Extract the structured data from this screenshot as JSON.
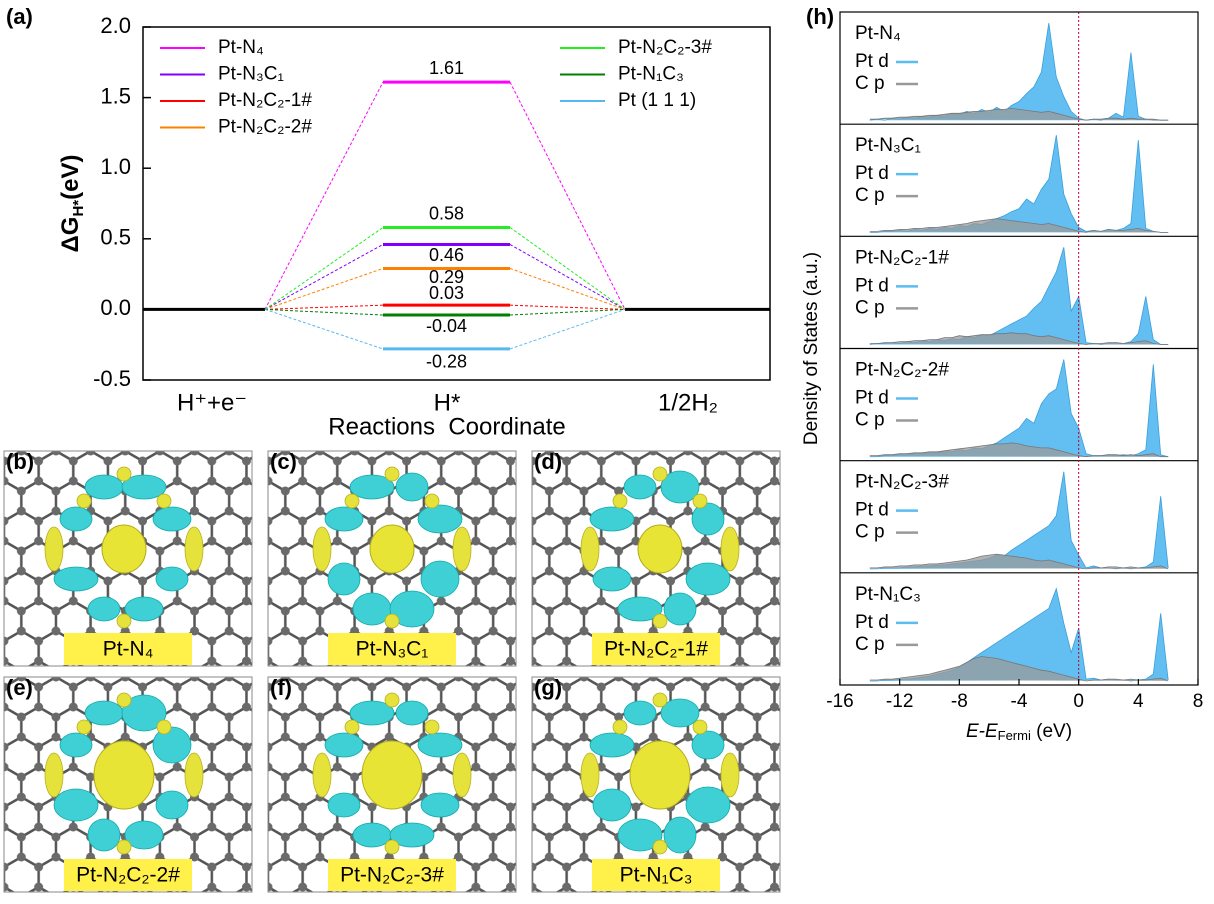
{
  "chart_data": [
    {
      "type": "profile",
      "tag": "(a)",
      "categories": [
        "H⁺+e⁻",
        "H*",
        "1/2H₂"
      ],
      "x_label": "Reactions  Coordinate",
      "y_label": [
        "ΔG",
        "H*",
        "(eV)"
      ],
      "ylim": [
        -0.5,
        2.0
      ],
      "yticks": [
        {
          "value": -0.5,
          "label": "-0.5"
        },
        {
          "value": 0,
          "label": "0.0"
        },
        {
          "value": 0.5,
          "label": "0.5"
        },
        {
          "value": 1,
          "label": "1.0"
        },
        {
          "value": 1.5,
          "label": "1.5"
        },
        {
          "value": 2,
          "label": "2.0"
        }
      ],
      "series": [
        {
          "name": "Pt-N₄",
          "color": "#ff00ff",
          "values": [
            0,
            1.61,
            0
          ]
        },
        {
          "name": "Pt-N₃C₁",
          "color": "#8000ff",
          "values": [
            0,
            0.46,
            0
          ]
        },
        {
          "name": "Pt-N₂C₂-1#",
          "color": "#ff0000",
          "values": [
            0,
            0.03,
            0
          ]
        },
        {
          "name": "Pt-N₂C₂-2#",
          "color": "#ff8000",
          "values": [
            0,
            0.29,
            0
          ]
        },
        {
          "name": "Pt-N₂C₂-3#",
          "color": "#22ee22",
          "values": [
            0,
            0.58,
            0
          ]
        },
        {
          "name": "Pt-N₁C₃",
          "color": "#007f00",
          "values": [
            0,
            -0.04,
            0
          ]
        },
        {
          "name": "Pt (1 1 1)",
          "color": "#55b8f0",
          "values": [
            0,
            -0.28,
            0
          ]
        }
      ]
    },
    {
      "type": "area",
      "tag": "(h)",
      "y_label": "Density of States (a.u.)",
      "x_label": [
        "E-E",
        "Fermi",
        " (eV)"
      ],
      "xlim": [
        -16,
        8
      ],
      "xticks": [
        -16,
        -12,
        -8,
        -4,
        0,
        4,
        8
      ],
      "ylim": [
        0,
        1
      ],
      "x": [
        -14,
        -13.5,
        -13,
        -12.5,
        -12,
        -11.5,
        -11,
        -10.5,
        -10,
        -9.5,
        -9,
        -8.5,
        -8,
        -7.5,
        -7,
        -6.5,
        -6,
        -5.5,
        -5,
        -4.5,
        -4,
        -3.5,
        -3,
        -2.5,
        -2,
        -1.5,
        -1,
        -0.5,
        0,
        0.5,
        1,
        1.5,
        2,
        2.5,
        3,
        3.5,
        4,
        4.5,
        5,
        5.5,
        6
      ],
      "panels": [
        {
          "title": "Pt-N₄",
          "series": [
            {
              "name": "Pt d",
              "color": "#5bbcf0",
              "values": [
                0.01,
                0.02,
                0.01,
                0.03,
                0.02,
                0.04,
                0.03,
                0.05,
                0.04,
                0.06,
                0.05,
                0.08,
                0.07,
                0.1,
                0.08,
                0.12,
                0.09,
                0.14,
                0.1,
                0.16,
                0.2,
                0.28,
                0.35,
                0.5,
                1.0,
                0.45,
                0.25,
                0.1,
                0.03,
                0.01,
                0.02,
                0.01,
                0.03,
                0.08,
                0.04,
                0.7,
                0.05,
                0.02,
                0.01,
                0.01,
                0.01
              ]
            },
            {
              "name": "C p",
              "color": "#999999",
              "values": [
                0.02,
                0.02,
                0.03,
                0.03,
                0.04,
                0.04,
                0.05,
                0.05,
                0.06,
                0.06,
                0.07,
                0.08,
                0.08,
                0.09,
                0.1,
                0.1,
                0.11,
                0.12,
                0.12,
                0.13,
                0.12,
                0.11,
                0.1,
                0.09,
                0.1,
                0.08,
                0.06,
                0.04,
                0.02,
                0.01,
                0.02,
                0.02,
                0.03,
                0.03,
                0.02,
                0.03,
                0.02,
                0.02,
                0.02,
                0.01,
                0.01
              ]
            }
          ]
        },
        {
          "title": "Pt-N₃C₁",
          "series": [
            {
              "name": "Pt d",
              "color": "#5bbcf0",
              "values": [
                0.01,
                0.01,
                0.02,
                0.02,
                0.03,
                0.02,
                0.04,
                0.03,
                0.05,
                0.04,
                0.06,
                0.05,
                0.08,
                0.07,
                0.1,
                0.09,
                0.12,
                0.15,
                0.18,
                0.22,
                0.25,
                0.35,
                0.3,
                0.45,
                0.55,
                1.0,
                0.4,
                0.2,
                0.06,
                0.02,
                0.03,
                0.02,
                0.04,
                0.03,
                0.05,
                0.1,
                0.95,
                0.05,
                0.02,
                0.01,
                0.01
              ]
            },
            {
              "name": "C p",
              "color": "#999999",
              "values": [
                0.02,
                0.02,
                0.03,
                0.03,
                0.04,
                0.04,
                0.05,
                0.05,
                0.06,
                0.06,
                0.07,
                0.08,
                0.09,
                0.1,
                0.12,
                0.13,
                0.14,
                0.15,
                0.14,
                0.13,
                0.12,
                0.11,
                0.1,
                0.09,
                0.1,
                0.08,
                0.06,
                0.04,
                0.02,
                0.01,
                0.03,
                0.02,
                0.04,
                0.03,
                0.03,
                0.04,
                0.05,
                0.03,
                0.02,
                0.01,
                0.01
              ]
            }
          ]
        },
        {
          "title": "Pt-N₂C₂-1#",
          "series": [
            {
              "name": "Pt d",
              "color": "#5bbcf0",
              "values": [
                0.01,
                0.02,
                0.02,
                0.03,
                0.02,
                0.04,
                0.03,
                0.05,
                0.04,
                0.06,
                0.05,
                0.07,
                0.06,
                0.09,
                0.08,
                0.11,
                0.1,
                0.14,
                0.18,
                0.22,
                0.26,
                0.3,
                0.38,
                0.45,
                0.6,
                0.75,
                1.0,
                0.35,
                0.5,
                0.03,
                0.02,
                0.01,
                0.02,
                0.03,
                0.02,
                0.04,
                0.12,
                0.5,
                0.06,
                0.01,
                0.01
              ]
            },
            {
              "name": "C p",
              "color": "#999999",
              "values": [
                0.02,
                0.02,
                0.03,
                0.03,
                0.04,
                0.04,
                0.05,
                0.05,
                0.06,
                0.06,
                0.08,
                0.08,
                0.1,
                0.09,
                0.1,
                0.11,
                0.11,
                0.12,
                0.12,
                0.13,
                0.12,
                0.12,
                0.1,
                0.09,
                0.1,
                0.08,
                0.06,
                0.04,
                0.02,
                0.01,
                0.02,
                0.02,
                0.03,
                0.03,
                0.02,
                0.03,
                0.04,
                0.05,
                0.02,
                0.01,
                0.01
              ]
            }
          ]
        },
        {
          "title": "Pt-N₂C₂-2#",
          "series": [
            {
              "name": "Pt d",
              "color": "#5bbcf0",
              "values": [
                0.01,
                0.01,
                0.02,
                0.02,
                0.03,
                0.03,
                0.04,
                0.04,
                0.05,
                0.05,
                0.06,
                0.06,
                0.08,
                0.07,
                0.1,
                0.09,
                0.12,
                0.15,
                0.2,
                0.25,
                0.3,
                0.4,
                0.35,
                0.55,
                0.65,
                0.7,
                1.0,
                0.45,
                0.3,
                0.04,
                0.02,
                0.02,
                0.03,
                0.02,
                0.03,
                0.02,
                0.04,
                0.08,
                0.95,
                0.03,
                0.01
              ]
            },
            {
              "name": "C p",
              "color": "#999999",
              "values": [
                0.02,
                0.02,
                0.03,
                0.03,
                0.04,
                0.04,
                0.05,
                0.05,
                0.06,
                0.06,
                0.07,
                0.08,
                0.09,
                0.1,
                0.11,
                0.12,
                0.13,
                0.14,
                0.14,
                0.15,
                0.14,
                0.12,
                0.11,
                0.1,
                0.1,
                0.08,
                0.06,
                0.04,
                0.02,
                0.01,
                0.02,
                0.02,
                0.03,
                0.03,
                0.02,
                0.03,
                0.02,
                0.03,
                0.04,
                0.01,
                0.01
              ]
            }
          ]
        },
        {
          "title": "Pt-N₂C₂-3#",
          "series": [
            {
              "name": "Pt d",
              "color": "#5bbcf0",
              "values": [
                0.01,
                0.01,
                0.02,
                0.02,
                0.02,
                0.03,
                0.03,
                0.04,
                0.04,
                0.05,
                0.05,
                0.06,
                0.07,
                0.08,
                0.09,
                0.1,
                0.12,
                0.15,
                0.14,
                0.2,
                0.25,
                0.3,
                0.35,
                0.4,
                0.45,
                0.55,
                1.0,
                0.3,
                0.15,
                0.02,
                0.04,
                0.02,
                0.02,
                0.01,
                0.02,
                0.01,
                0.02,
                0.03,
                0.08,
                0.75,
                0.02
              ]
            },
            {
              "name": "C p",
              "color": "#999999",
              "values": [
                0.02,
                0.02,
                0.03,
                0.03,
                0.04,
                0.04,
                0.05,
                0.05,
                0.06,
                0.06,
                0.07,
                0.08,
                0.09,
                0.1,
                0.12,
                0.14,
                0.15,
                0.16,
                0.15,
                0.14,
                0.13,
                0.12,
                0.1,
                0.09,
                0.1,
                0.08,
                0.06,
                0.04,
                0.02,
                0.01,
                0.02,
                0.02,
                0.03,
                0.03,
                0.02,
                0.03,
                0.02,
                0.02,
                0.03,
                0.04,
                0.01
              ]
            }
          ]
        },
        {
          "title": "Pt-N₁C₃",
          "series": [
            {
              "name": "Pt d",
              "color": "#5bbcf0",
              "values": [
                0.01,
                0.01,
                0.02,
                0.02,
                0.03,
                0.03,
                0.04,
                0.05,
                0.06,
                0.08,
                0.1,
                0.12,
                0.15,
                0.2,
                0.25,
                0.3,
                0.35,
                0.4,
                0.45,
                0.5,
                0.55,
                0.6,
                0.65,
                0.7,
                0.75,
                0.95,
                0.6,
                0.3,
                0.55,
                0.03,
                0.04,
                0.02,
                0.03,
                0.02,
                0.02,
                0.01,
                0.02,
                0.03,
                0.08,
                0.7,
                0.02
              ]
            },
            {
              "name": "C p",
              "color": "#999999",
              "values": [
                0.02,
                0.02,
                0.03,
                0.03,
                0.04,
                0.05,
                0.06,
                0.07,
                0.08,
                0.1,
                0.12,
                0.14,
                0.16,
                0.2,
                0.24,
                0.26,
                0.25,
                0.24,
                0.22,
                0.2,
                0.18,
                0.16,
                0.14,
                0.12,
                0.11,
                0.09,
                0.07,
                0.05,
                0.03,
                0.01,
                0.02,
                0.02,
                0.03,
                0.03,
                0.02,
                0.03,
                0.02,
                0.02,
                0.03,
                0.04,
                0.01
              ]
            }
          ]
        }
      ]
    }
  ],
  "images": [
    {
      "tag": "(b)",
      "label": "Pt-N₄"
    },
    {
      "tag": "(c)",
      "label": "Pt-N₃C₁"
    },
    {
      "tag": "(d)",
      "label": "Pt-N₂C₂-1#"
    },
    {
      "tag": "(e)",
      "label": "Pt-N₂C₂-2#"
    },
    {
      "tag": "(f)",
      "label": "Pt-N₂C₂-3#"
    },
    {
      "tag": "(g)",
      "label": "Pt-N₁C₃"
    }
  ]
}
